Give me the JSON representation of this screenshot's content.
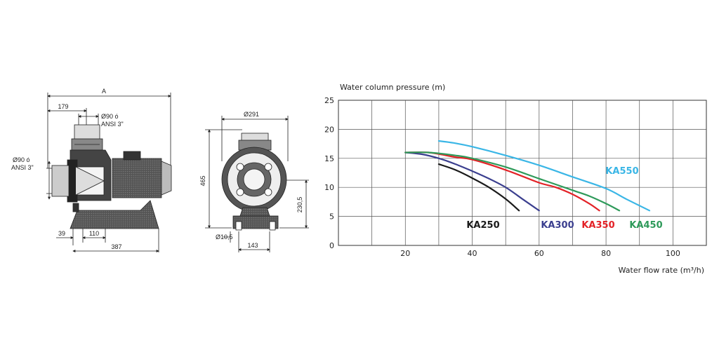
{
  "drawings": {
    "side_view": {
      "dim_a": "A",
      "dim_179": "179",
      "inlet_top_1": "Ø90 ó",
      "inlet_top_2": "ANSI 3\"",
      "inlet_side_1": "Ø90 ó",
      "inlet_side_2": "ANSI 3\"",
      "dim_39": "39",
      "dim_110": "110",
      "dim_387": "387"
    },
    "front_view": {
      "dim_291": "Ø291",
      "dim_465": "465",
      "dim_230_5": "230,5",
      "dim_10_5": "Ø10,5",
      "dim_143": "143"
    }
  },
  "chart_data": {
    "type": "line",
    "ylabel": "Water column pressure (m)",
    "xlabel": "Water flow rate (m³/h)",
    "xlim": [
      0,
      110
    ],
    "ylim": [
      0,
      25
    ],
    "xticks": [
      20,
      40,
      60,
      80,
      100
    ],
    "yticks": [
      0,
      5,
      10,
      15,
      20,
      25
    ],
    "grid": true,
    "series": [
      {
        "name": "KA250",
        "color": "#1a1a1a",
        "x": [
          30,
          35,
          40,
          45,
          50,
          54
        ],
        "y": [
          14,
          13,
          11.6,
          10,
          8,
          6
        ]
      },
      {
        "name": "KA300",
        "color": "#3b3f8f",
        "x": [
          20,
          25,
          30,
          35,
          40,
          45,
          50,
          55,
          60
        ],
        "y": [
          16,
          15.7,
          15,
          14,
          12.8,
          11.5,
          10,
          8,
          6
        ]
      },
      {
        "name": "KA350",
        "color": "#e32227",
        "x": [
          20,
          27,
          35,
          40,
          50,
          60,
          65,
          70,
          75,
          78
        ],
        "y": [
          16,
          16,
          15.2,
          14.8,
          13,
          10.8,
          10,
          8.8,
          7.2,
          6
        ]
      },
      {
        "name": "KA450",
        "color": "#2e9a5a",
        "x": [
          20,
          27,
          35,
          40,
          50,
          60,
          70,
          75,
          80,
          84
        ],
        "y": [
          16,
          16,
          15.5,
          15,
          13.5,
          11.5,
          9.5,
          8.5,
          7.2,
          6
        ]
      },
      {
        "name": "KA550",
        "color": "#3ab6e6",
        "x": [
          30,
          35,
          40,
          50,
          60,
          70,
          80,
          86,
          93
        ],
        "y": [
          18,
          17.6,
          17,
          15.5,
          13.8,
          11.8,
          9.8,
          8,
          6
        ]
      }
    ],
    "labels": [
      {
        "series": "KA250",
        "text": "KA250"
      },
      {
        "series": "KA300",
        "text": "KA300"
      },
      {
        "series": "KA350",
        "text": "KA350"
      },
      {
        "series": "KA450",
        "text": "KA450"
      },
      {
        "series": "KA550",
        "text": "KA550"
      }
    ]
  }
}
